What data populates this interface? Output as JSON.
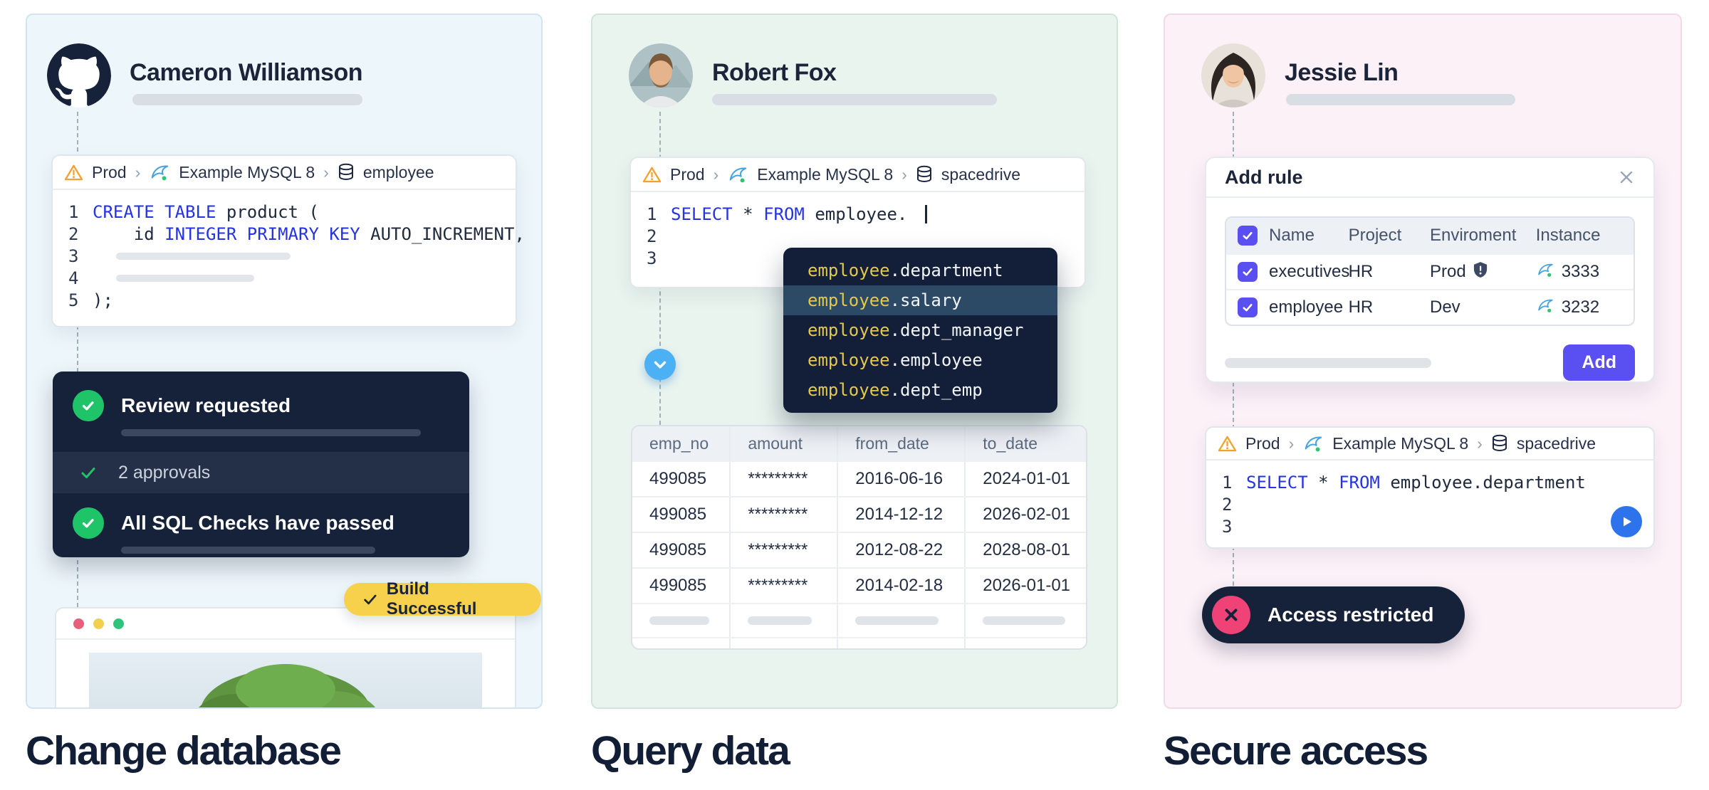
{
  "captions": {
    "left": "Change database",
    "middle": "Query data",
    "right": "Secure access"
  },
  "colors": {
    "keyword_blue": "#2533e4",
    "navy": "#16213a",
    "green": "#20c468",
    "indigo": "#5a4ff0",
    "pink": "#ef4377",
    "sky_blue": "#4cb0f4",
    "play_blue": "#2d74ec",
    "badge_yellow": "#f8d14c",
    "autocomplete_yellow": "#e3c74f",
    "warning_orange": "#f0a32f",
    "mysql_blue": "#4aa3df"
  },
  "left": {
    "user": "Cameron Williamson",
    "breadcrumb": {
      "env": "Prod",
      "separator": "›",
      "source": "Example MySQL 8",
      "database": "employee"
    },
    "code": {
      "lines": [
        {
          "no": "1",
          "segments": [
            {
              "text": "CREATE TABLE ",
              "kw": true
            },
            {
              "text": "product ("
            }
          ]
        },
        {
          "no": "2",
          "segments": [
            {
              "text": "    id "
            },
            {
              "text": "INTEGER PRIMARY KEY",
              "kw": true
            },
            {
              "text": " AUTO_INCREMENT,"
            }
          ]
        },
        {
          "no": "3",
          "ghost_width": 245
        },
        {
          "no": "4",
          "ghost_width": 194
        },
        {
          "no": "5",
          "segments": [
            {
              "text": ");"
            }
          ]
        }
      ]
    },
    "review": {
      "title": "Review requested",
      "approvals": "2 approvals",
      "checks": "All SQL Checks have passed"
    },
    "build_badge": "Build Successful"
  },
  "middle": {
    "user": "Robert Fox",
    "breadcrumb": {
      "env": "Prod",
      "separator": "›",
      "source": "Example MySQL 8",
      "database": "spacedrive"
    },
    "code": {
      "lines": [
        {
          "no": "1",
          "segments": [
            {
              "text": "SELECT ",
              "kw": true
            },
            {
              "text": "* "
            },
            {
              "text": "FROM ",
              "kw": true
            },
            {
              "text": "employee. "
            }
          ],
          "caret": true
        },
        {
          "no": "2",
          "segments": []
        },
        {
          "no": "3",
          "segments": []
        }
      ]
    },
    "autocomplete": {
      "prefix": "employee",
      "items": [
        "department",
        "salary",
        "dept_manager",
        "employee",
        "dept_emp"
      ],
      "selected": "salary"
    },
    "result_table": {
      "columns": [
        "emp_no",
        "amount",
        "from_date",
        "to_date"
      ],
      "rows": [
        [
          "499085",
          "*********",
          "2016-06-16",
          "2024-01-01"
        ],
        [
          "499085",
          "*********",
          "2014-12-12",
          "2026-02-01"
        ],
        [
          "499085",
          "*********",
          "2012-08-22",
          "2028-08-01"
        ],
        [
          "499085",
          "*********",
          "2014-02-18",
          "2026-01-01"
        ]
      ],
      "ghost_bar_widths": [
        84,
        90,
        117,
        116
      ]
    }
  },
  "right": {
    "user": "Jessie Lin",
    "dialog": {
      "title": "Add rule",
      "columns": [
        "Name",
        "Project",
        "Enviroment",
        "Instance"
      ],
      "rows": [
        {
          "name": "executives",
          "project": "HR",
          "environment": "Prod",
          "shield": true,
          "instance": "3333",
          "checked": true
        },
        {
          "name": "employee",
          "project": "HR",
          "environment": "Dev",
          "shield": false,
          "instance": "3232",
          "checked": true
        }
      ],
      "add_label": "Add"
    },
    "breadcrumb": {
      "env": "Prod",
      "separator": "›",
      "source": "Example MySQL 8",
      "database": "spacedrive"
    },
    "code": {
      "lines": [
        {
          "no": "1",
          "segments": [
            {
              "text": "SELECT ",
              "kw": true
            },
            {
              "text": "* "
            },
            {
              "text": "FROM ",
              "kw": true
            },
            {
              "text": "employee.department"
            }
          ]
        },
        {
          "no": "2",
          "segments": []
        },
        {
          "no": "3",
          "segments": []
        }
      ]
    },
    "status_pill": "Access restricted"
  }
}
